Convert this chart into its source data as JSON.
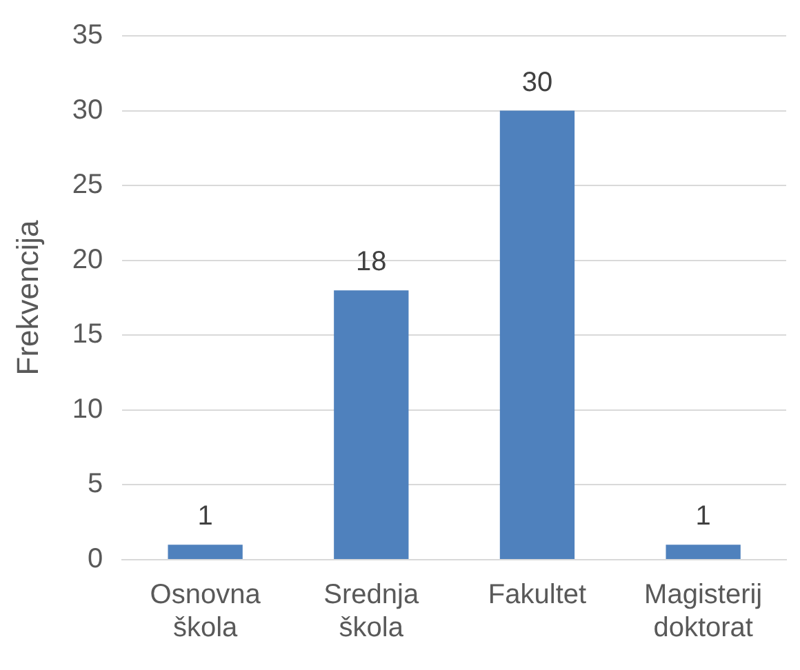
{
  "chart_data": {
    "type": "bar",
    "ylabel": "Frekvencija",
    "categories": [
      "Osnovna škola",
      "Srednja škola",
      "Fakultet",
      "Magisterij doktorat"
    ],
    "values": [
      1,
      18,
      30,
      1
    ],
    "color": "#4f81bd",
    "ylim": [
      0,
      35
    ],
    "yticks": [
      0,
      5,
      10,
      15,
      20,
      25,
      30,
      35
    ],
    "grid": "y",
    "data_labels": true,
    "legend": false
  }
}
